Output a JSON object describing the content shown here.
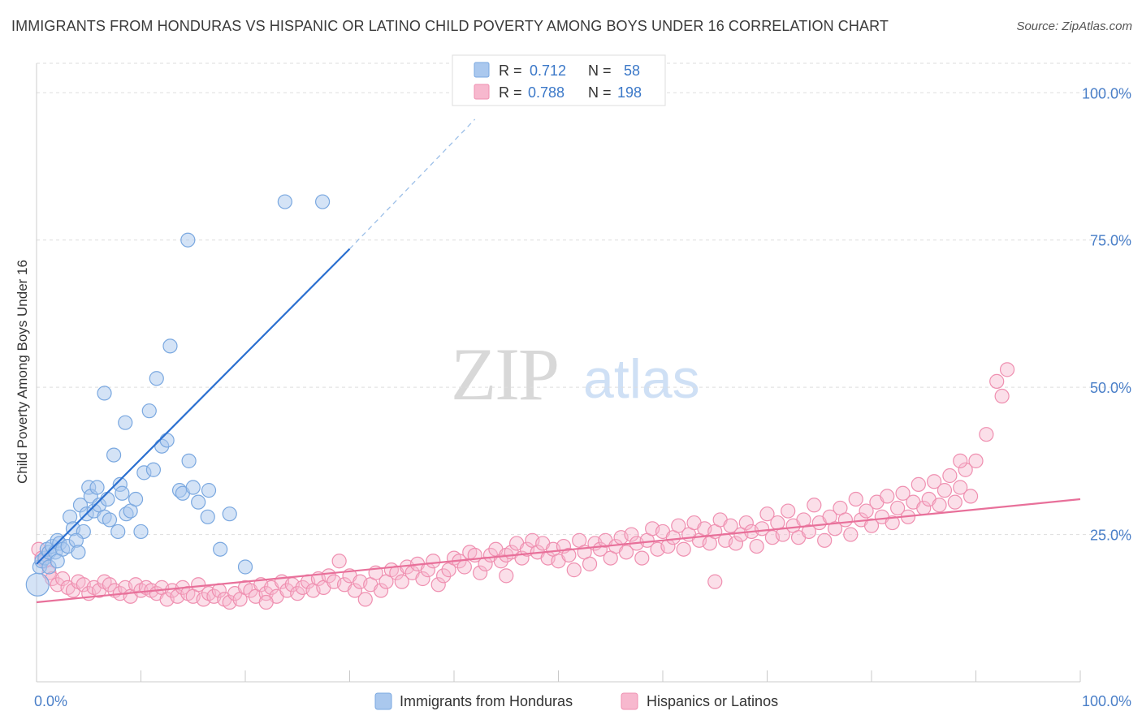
{
  "header": {
    "title": "IMMIGRANTS FROM HONDURAS VS HISPANIC OR LATINO CHILD POVERTY AMONG BOYS UNDER 16 CORRELATION CHART",
    "source": "Source: ZipAtlas.com"
  },
  "watermark": {
    "zip": "ZIP",
    "atlas": "atlas"
  },
  "stats_legend": [
    {
      "r_label": "R =",
      "r_value": "0.712",
      "n_label": "N =",
      "n_value": "58"
    },
    {
      "r_label": "R =",
      "r_value": "0.788",
      "n_label": "N =",
      "n_value": "198"
    }
  ],
  "colors": {
    "blue_fill": "#aac8ee",
    "blue_stroke": "#7aa8e0",
    "blue_line": "#2a6fd0",
    "pink_fill": "#f7b8ce",
    "pink_stroke": "#ef8fb0",
    "pink_line": "#e8709a",
    "tick_label": "#4a7fc8",
    "grid": "#dddddd"
  },
  "chart_data": {
    "type": "scatter",
    "title": "IMMIGRANTS FROM HONDURAS VS HISPANIC OR LATINO CHILD POVERTY AMONG BOYS UNDER 16 CORRELATION CHART",
    "xlabel": "",
    "ylabel": "Child Poverty Among Boys Under 16",
    "xlim": [
      0,
      100
    ],
    "ylim": [
      0,
      105
    ],
    "x_tick_labels": [
      "0.0%",
      "100.0%"
    ],
    "y_tick_labels": [
      "25.0%",
      "50.0%",
      "75.0%",
      "100.0%"
    ],
    "y_ticks": [
      25,
      50,
      75,
      100
    ],
    "grid": true,
    "legend_position": "bottom",
    "series": [
      {
        "name": "Immigrants from Honduras",
        "color": "#aac8ee",
        "r": 0.712,
        "n": 58,
        "trend": {
          "x0": 0,
          "y0": 20.0,
          "x1": 30,
          "y1": 73.5,
          "dashed_to_x": 42,
          "dashed_to_y": 95.5
        },
        "points": [
          [
            0.1,
            16.5
          ],
          [
            0.3,
            19.5
          ],
          [
            0.5,
            20.5
          ],
          [
            0.8,
            21.0
          ],
          [
            1.0,
            22.5
          ],
          [
            1.2,
            22.0
          ],
          [
            1.5,
            23.0
          ],
          [
            1.8,
            22.0
          ],
          [
            2.0,
            24.0
          ],
          [
            2.2,
            23.5
          ],
          [
            1.2,
            19.5
          ],
          [
            2.5,
            22.5
          ],
          [
            3.0,
            23.0
          ],
          [
            3.2,
            28.0
          ],
          [
            3.5,
            26.0
          ],
          [
            4.2,
            30.0
          ],
          [
            4.5,
            25.5
          ],
          [
            4.8,
            28.5
          ],
          [
            5.0,
            33.0
          ],
          [
            2.0,
            20.5
          ],
          [
            3.8,
            24.0
          ],
          [
            4.0,
            22.0
          ],
          [
            5.2,
            31.5
          ],
          [
            5.8,
            33.0
          ],
          [
            5.5,
            29.0
          ],
          [
            6.0,
            30.0
          ],
          [
            6.5,
            28.0
          ],
          [
            6.8,
            31.0
          ],
          [
            7.0,
            27.5
          ],
          [
            7.4,
            38.5
          ],
          [
            7.8,
            25.5
          ],
          [
            8.0,
            33.5
          ],
          [
            8.2,
            32.0
          ],
          [
            8.6,
            28.5
          ],
          [
            9.0,
            29.0
          ],
          [
            9.5,
            31.0
          ],
          [
            10.0,
            25.5
          ],
          [
            8.5,
            44.0
          ],
          [
            6.5,
            49.0
          ],
          [
            10.3,
            35.5
          ],
          [
            10.8,
            46.0
          ],
          [
            11.2,
            36.0
          ],
          [
            11.5,
            51.5
          ],
          [
            12.0,
            40.0
          ],
          [
            12.5,
            41.0
          ],
          [
            12.8,
            57.0
          ],
          [
            13.7,
            32.5
          ],
          [
            14.0,
            32.0
          ],
          [
            14.6,
            37.5
          ],
          [
            15.0,
            33.0
          ],
          [
            15.5,
            30.5
          ],
          [
            16.5,
            32.5
          ],
          [
            16.4,
            28.0
          ],
          [
            17.6,
            22.5
          ],
          [
            18.5,
            28.5
          ],
          [
            20.0,
            19.5
          ],
          [
            14.5,
            75.0
          ],
          [
            23.8,
            81.5
          ],
          [
            27.4,
            81.5
          ]
        ]
      },
      {
        "name": "Hispanics or Latinos",
        "color": "#f7b8ce",
        "r": 0.788,
        "n": 198,
        "trend": {
          "x0": 0,
          "y0": 13.5,
          "x1": 100,
          "y1": 31.0
        },
        "points": [
          [
            0.2,
            22.5
          ],
          [
            0.5,
            21.0
          ],
          [
            0.8,
            20.5
          ],
          [
            1.2,
            18.5
          ],
          [
            1.5,
            17.5
          ],
          [
            2.0,
            16.5
          ],
          [
            2.5,
            17.5
          ],
          [
            3.0,
            16.0
          ],
          [
            3.5,
            15.5
          ],
          [
            4.0,
            17.0
          ],
          [
            4.5,
            16.5
          ],
          [
            5.0,
            15.0
          ],
          [
            5.5,
            16.0
          ],
          [
            6.0,
            15.5
          ],
          [
            6.5,
            17.0
          ],
          [
            7.0,
            16.5
          ],
          [
            7.5,
            15.5
          ],
          [
            8.0,
            15.0
          ],
          [
            8.5,
            16.0
          ],
          [
            9.0,
            14.5
          ],
          [
            9.5,
            16.5
          ],
          [
            10.0,
            15.5
          ],
          [
            10.5,
            16.0
          ],
          [
            11.0,
            15.5
          ],
          [
            11.5,
            15.0
          ],
          [
            12.0,
            16.0
          ],
          [
            12.5,
            14.0
          ],
          [
            13.0,
            15.5
          ],
          [
            13.5,
            14.5
          ],
          [
            14.0,
            16.0
          ],
          [
            14.5,
            15.0
          ],
          [
            15.0,
            14.5
          ],
          [
            15.5,
            16.5
          ],
          [
            16.0,
            14.0
          ],
          [
            16.5,
            15.0
          ],
          [
            17.0,
            14.5
          ],
          [
            17.5,
            15.5
          ],
          [
            18.0,
            14.0
          ],
          [
            18.5,
            13.5
          ],
          [
            19.0,
            15.0
          ],
          [
            19.5,
            14.0
          ],
          [
            20.0,
            16.0
          ],
          [
            20.5,
            15.5
          ],
          [
            21.0,
            14.5
          ],
          [
            21.5,
            16.5
          ],
          [
            22.0,
            15.0
          ],
          [
            22.5,
            16.0
          ],
          [
            23.0,
            14.5
          ],
          [
            23.5,
            17.0
          ],
          [
            24.0,
            15.5
          ],
          [
            24.5,
            16.5
          ],
          [
            25.0,
            15.0
          ],
          [
            25.5,
            16.0
          ],
          [
            26.0,
            17.0
          ],
          [
            26.5,
            15.5
          ],
          [
            27.0,
            17.5
          ],
          [
            27.5,
            16.0
          ],
          [
            28.0,
            18.0
          ],
          [
            28.5,
            17.0
          ],
          [
            29.0,
            20.5
          ],
          [
            29.5,
            16.5
          ],
          [
            30.0,
            18.0
          ],
          [
            30.5,
            15.5
          ],
          [
            31.0,
            17.0
          ],
          [
            31.5,
            14.0
          ],
          [
            32.0,
            16.5
          ],
          [
            32.5,
            18.5
          ],
          [
            33.0,
            15.5
          ],
          [
            33.5,
            17.0
          ],
          [
            34.0,
            19.0
          ],
          [
            34.5,
            18.5
          ],
          [
            35.0,
            17.0
          ],
          [
            35.5,
            19.5
          ],
          [
            36.0,
            18.5
          ],
          [
            36.5,
            20.0
          ],
          [
            37.0,
            17.5
          ],
          [
            37.5,
            19.0
          ],
          [
            38.0,
            20.5
          ],
          [
            38.5,
            16.5
          ],
          [
            39.0,
            18.0
          ],
          [
            39.5,
            19.0
          ],
          [
            40.0,
            21.0
          ],
          [
            40.5,
            20.5
          ],
          [
            41.0,
            19.5
          ],
          [
            41.5,
            22.0
          ],
          [
            42.0,
            21.5
          ],
          [
            42.5,
            18.5
          ],
          [
            43.0,
            20.0
          ],
          [
            43.5,
            21.5
          ],
          [
            44.0,
            22.5
          ],
          [
            44.5,
            20.5
          ],
          [
            45.0,
            21.5
          ],
          [
            45.5,
            22.0
          ],
          [
            46.0,
            23.5
          ],
          [
            46.5,
            21.0
          ],
          [
            47.0,
            22.5
          ],
          [
            47.5,
            24.0
          ],
          [
            48.0,
            22.0
          ],
          [
            48.5,
            23.5
          ],
          [
            49.0,
            21.0
          ],
          [
            49.5,
            22.5
          ],
          [
            50.0,
            20.5
          ],
          [
            50.5,
            23.0
          ],
          [
            51.0,
            21.5
          ],
          [
            51.5,
            19.0
          ],
          [
            52.0,
            24.0
          ],
          [
            52.5,
            22.0
          ],
          [
            53.0,
            20.0
          ],
          [
            53.5,
            23.5
          ],
          [
            54.0,
            22.5
          ],
          [
            54.5,
            24.0
          ],
          [
            55.0,
            21.0
          ],
          [
            55.5,
            23.0
          ],
          [
            56.0,
            24.5
          ],
          [
            56.5,
            22.0
          ],
          [
            57.0,
            25.0
          ],
          [
            57.5,
            23.5
          ],
          [
            58.0,
            21.0
          ],
          [
            58.5,
            24.0
          ],
          [
            59.0,
            26.0
          ],
          [
            59.5,
            22.5
          ],
          [
            60.0,
            25.5
          ],
          [
            60.5,
            23.0
          ],
          [
            61.0,
            24.5
          ],
          [
            61.5,
            26.5
          ],
          [
            62.0,
            22.5
          ],
          [
            62.5,
            25.0
          ],
          [
            63.0,
            27.0
          ],
          [
            63.5,
            24.0
          ],
          [
            64.0,
            26.0
          ],
          [
            64.5,
            23.5
          ],
          [
            65.0,
            25.5
          ],
          [
            65.5,
            27.5
          ],
          [
            66.0,
            24.0
          ],
          [
            66.5,
            26.5
          ],
          [
            67.0,
            23.5
          ],
          [
            67.5,
            25.0
          ],
          [
            68.0,
            27.0
          ],
          [
            68.5,
            25.5
          ],
          [
            69.0,
            23.0
          ],
          [
            69.5,
            26.0
          ],
          [
            70.0,
            28.5
          ],
          [
            70.5,
            24.5
          ],
          [
            71.0,
            27.0
          ],
          [
            71.5,
            25.0
          ],
          [
            72.0,
            29.0
          ],
          [
            72.5,
            26.5
          ],
          [
            73.0,
            24.5
          ],
          [
            73.5,
            27.5
          ],
          [
            74.0,
            25.5
          ],
          [
            74.5,
            30.0
          ],
          [
            75.0,
            27.0
          ],
          [
            75.5,
            24.0
          ],
          [
            76.0,
            28.0
          ],
          [
            76.5,
            26.0
          ],
          [
            77.0,
            29.5
          ],
          [
            77.5,
            27.5
          ],
          [
            78.0,
            25.0
          ],
          [
            78.5,
            31.0
          ],
          [
            79.0,
            27.5
          ],
          [
            79.5,
            29.0
          ],
          [
            80.0,
            26.5
          ],
          [
            80.5,
            30.5
          ],
          [
            81.0,
            28.0
          ],
          [
            81.5,
            31.5
          ],
          [
            82.0,
            27.0
          ],
          [
            82.5,
            29.5
          ],
          [
            83.0,
            32.0
          ],
          [
            83.5,
            28.0
          ],
          [
            84.0,
            30.5
          ],
          [
            84.5,
            33.5
          ],
          [
            85.0,
            29.5
          ],
          [
            85.5,
            31.0
          ],
          [
            86.0,
            34.0
          ],
          [
            86.5,
            30.0
          ],
          [
            87.0,
            32.5
          ],
          [
            87.5,
            35.0
          ],
          [
            88.0,
            30.5
          ],
          [
            88.5,
            33.0
          ],
          [
            89.0,
            36.0
          ],
          [
            89.5,
            31.5
          ],
          [
            90.0,
            37.5
          ],
          [
            91.0,
            42.0
          ],
          [
            92.0,
            51.0
          ],
          [
            93.0,
            53.0
          ],
          [
            88.5,
            37.5
          ],
          [
            92.5,
            48.5
          ],
          [
            65.0,
            17.0
          ],
          [
            45.0,
            18.0
          ],
          [
            22.0,
            13.5
          ]
        ]
      }
    ]
  }
}
